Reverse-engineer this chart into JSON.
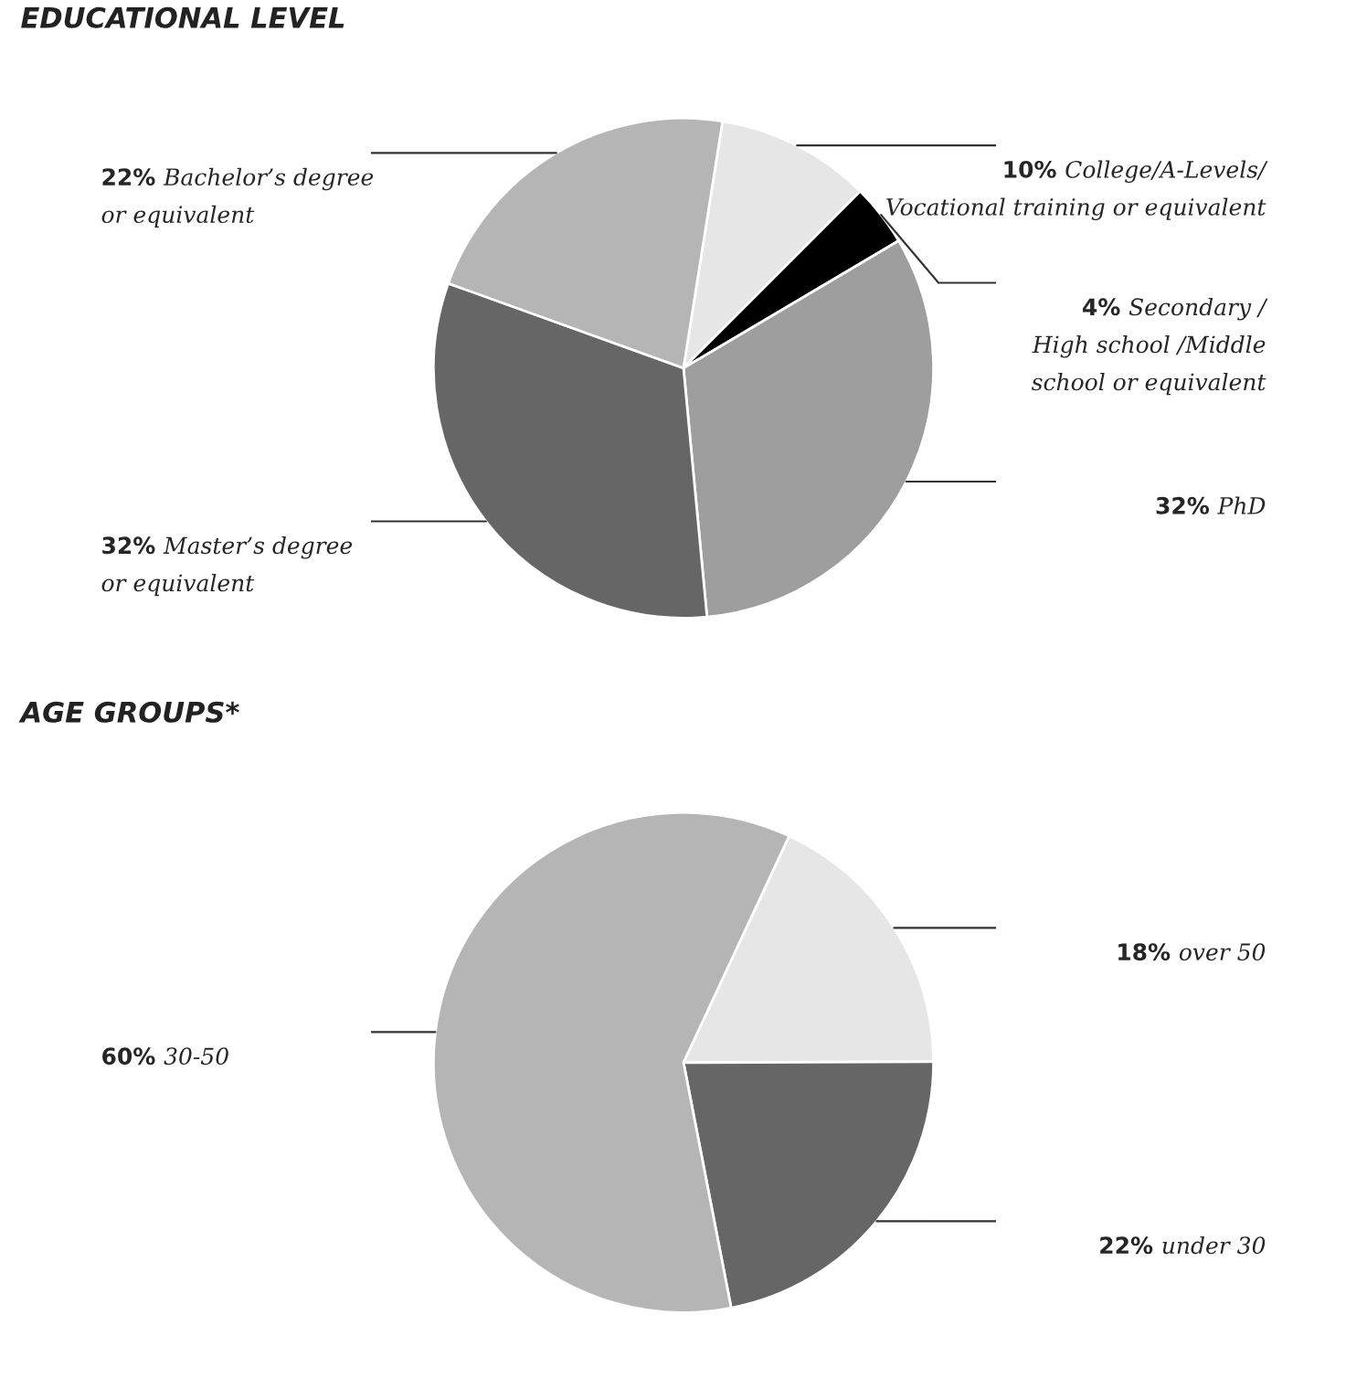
{
  "chart_data": [
    {
      "type": "pie",
      "title": "EDUCATIONAL LEVEL",
      "categories": [
        "College/A-Levels/\nVocational training or equivalent",
        "Secondary /\nHigh school /Middle\nschool or equivalent",
        "PhD",
        "Master’s degree\nor equivalent",
        "Bachelor’s degree\nor equivalent"
      ],
      "values": [
        10,
        4,
        32,
        32,
        22
      ],
      "value_labels": [
        "10%",
        "4%",
        "32%",
        "32%",
        "22%"
      ],
      "colors": [
        "#e6e6e6",
        "#000000",
        "#9e9e9e",
        "#666666",
        "#b5b5b5"
      ]
    },
    {
      "type": "pie",
      "title": "AGE GROUPS*",
      "categories": [
        "over 50",
        "under 30",
        "30-50"
      ],
      "values": [
        18,
        22,
        60
      ],
      "value_labels": [
        "18%",
        "22%",
        "60%"
      ],
      "colors": [
        "#e6e6e6",
        "#666666",
        "#b5b5b5"
      ]
    }
  ]
}
